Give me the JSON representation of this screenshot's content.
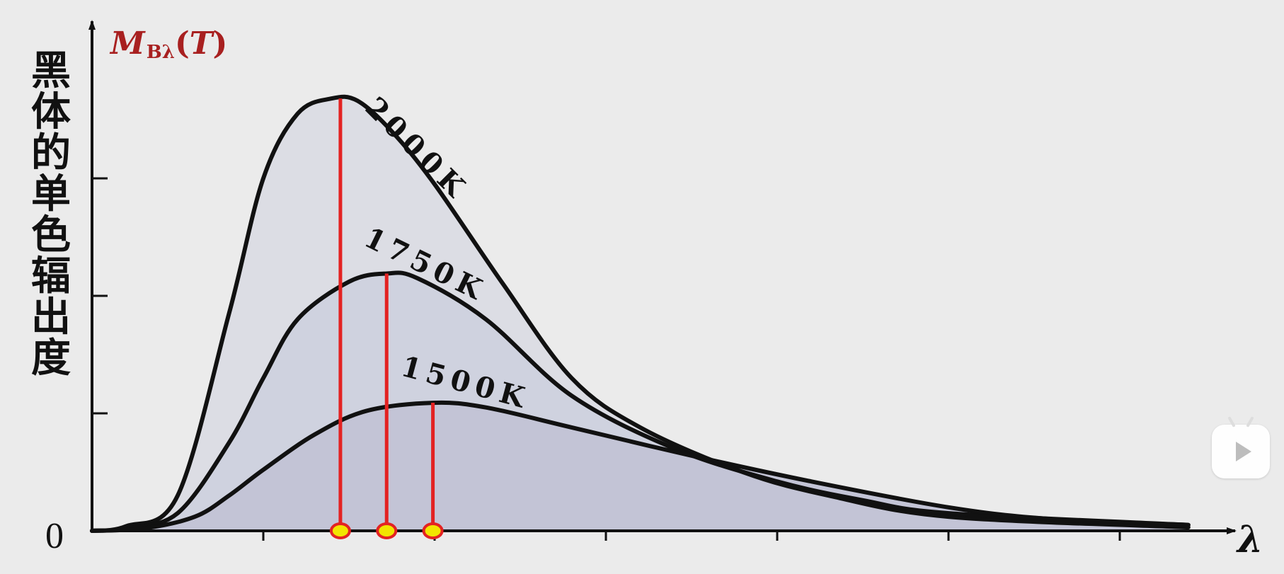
{
  "chart_data": {
    "type": "area",
    "y_axis_symbol": {
      "main": "M",
      "sub": "Bλ",
      "paren_open": "(",
      "var": "T",
      "paren_close": ")"
    },
    "ylabel_chars": [
      "黑",
      "体",
      "的",
      "单",
      "色",
      "辐",
      "出",
      "度"
    ],
    "origin_label": "0",
    "xlabel": "λ",
    "x_ticks": [
      1,
      2,
      3,
      4,
      5,
      6
    ],
    "y_ticks": [
      1,
      2,
      3
    ],
    "xlim": [
      0,
      6.5
    ],
    "ylim": [
      0,
      3.7
    ],
    "grid": false,
    "colors": {
      "curve": "#111111",
      "peak_line": "#e32222",
      "marker_fill": "#f2e400",
      "fill_2000": "#dcdde4",
      "fill_1750": "#cfd2df",
      "fill_1500": "#c3c4d6",
      "ylabel_symbol": "#a82020"
    },
    "series": [
      {
        "name": "2000K",
        "peak": [
          1.45,
          3.68
        ],
        "x": [
          0,
          0.2,
          0.5,
          0.8,
          1.0,
          1.2,
          1.4,
          1.55,
          1.75,
          2.0,
          2.4,
          2.8,
          3.2,
          3.8,
          4.3,
          5.0,
          6.4
        ],
        "y": [
          0,
          0.04,
          0.3,
          1.85,
          3.0,
          3.55,
          3.68,
          3.66,
          3.4,
          2.95,
          2.1,
          1.3,
          0.88,
          0.5,
          0.3,
          0.12,
          0.03
        ]
      },
      {
        "name": "1750K",
        "peak": [
          1.72,
          2.19
        ],
        "x": [
          0,
          0.2,
          0.5,
          0.8,
          1.0,
          1.2,
          1.5,
          1.72,
          1.9,
          2.3,
          2.8,
          3.4,
          4.0,
          4.5,
          5.0,
          6.4
        ],
        "y": [
          0,
          0.02,
          0.15,
          0.75,
          1.3,
          1.8,
          2.12,
          2.19,
          2.15,
          1.8,
          1.15,
          0.7,
          0.42,
          0.26,
          0.15,
          0.05
        ]
      },
      {
        "name": "1500K",
        "peak": [
          1.99,
          1.09
        ],
        "x": [
          0,
          0.3,
          0.6,
          0.8,
          1.0,
          1.3,
          1.6,
          1.99,
          2.3,
          2.8,
          3.5,
          4.2,
          5.0,
          5.6,
          6.4
        ],
        "y": [
          0,
          0.02,
          0.12,
          0.3,
          0.52,
          0.82,
          1.02,
          1.09,
          1.05,
          0.88,
          0.64,
          0.42,
          0.2,
          0.1,
          0.05
        ]
      }
    ]
  }
}
